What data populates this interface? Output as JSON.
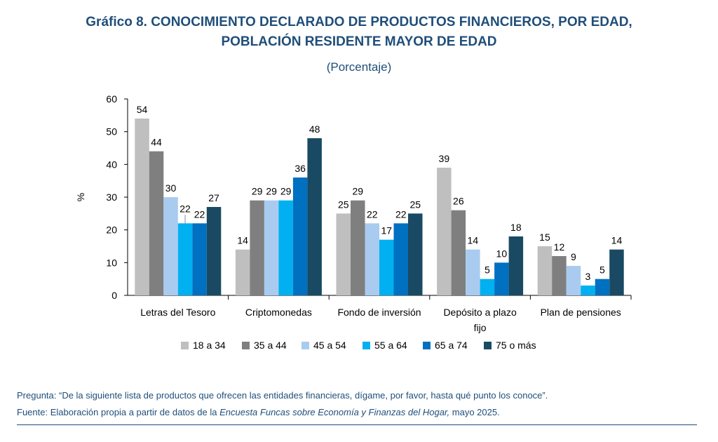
{
  "title_line1": "Gráfico 8. CONOCIMIENTO DECLARADO DE PRODUCTOS FINANCIEROS, POR EDAD,",
  "title_line2": "POBLACIÓN RESIDENTE MAYOR DE EDAD",
  "subtitle": "(Porcentaje)",
  "note_question": "Pregunta: “De la siguiente lista de productos que ofrecen las entidades financieras, dígame, por favor, hasta qué punto los conoce”.",
  "note_source_prefix": "Fuente: Elaboración propia a partir de datos de la ",
  "note_source_italic": "Encuesta Funcas sobre Economía y Finanzas del Hogar,",
  "note_source_suffix": " mayo 2025.",
  "chart_data": {
    "type": "bar",
    "ylabel": "%",
    "ylim": [
      0,
      60
    ],
    "yticks": [
      0,
      10,
      20,
      30,
      40,
      50,
      60
    ],
    "grid": false,
    "legend_position": "bottom",
    "categories": [
      [
        "Letras del Tesoro"
      ],
      [
        "Criptomonedas"
      ],
      [
        "Fondo de inversión"
      ],
      [
        "Depósito a plazo",
        "fijo"
      ],
      [
        "Plan de pensiones"
      ]
    ],
    "series": [
      {
        "name": "18 a 34",
        "color": "#bfbfbf",
        "values": [
          54,
          14,
          25,
          39,
          15
        ]
      },
      {
        "name": "35 a 44",
        "color": "#7f7f7f",
        "values": [
          44,
          29,
          29,
          26,
          12
        ]
      },
      {
        "name": "45 a 54",
        "color": "#a9cbef",
        "values": [
          30,
          29,
          22,
          14,
          9
        ]
      },
      {
        "name": "55 a 64",
        "color": "#00b0f0",
        "values": [
          22,
          29,
          17,
          5,
          3
        ]
      },
      {
        "name": "65 a 74",
        "color": "#0070c0",
        "values": [
          22,
          36,
          22,
          10,
          5
        ]
      },
      {
        "name": "75 o más",
        "color": "#1a4a63",
        "values": [
          27,
          48,
          25,
          18,
          14
        ]
      }
    ]
  }
}
